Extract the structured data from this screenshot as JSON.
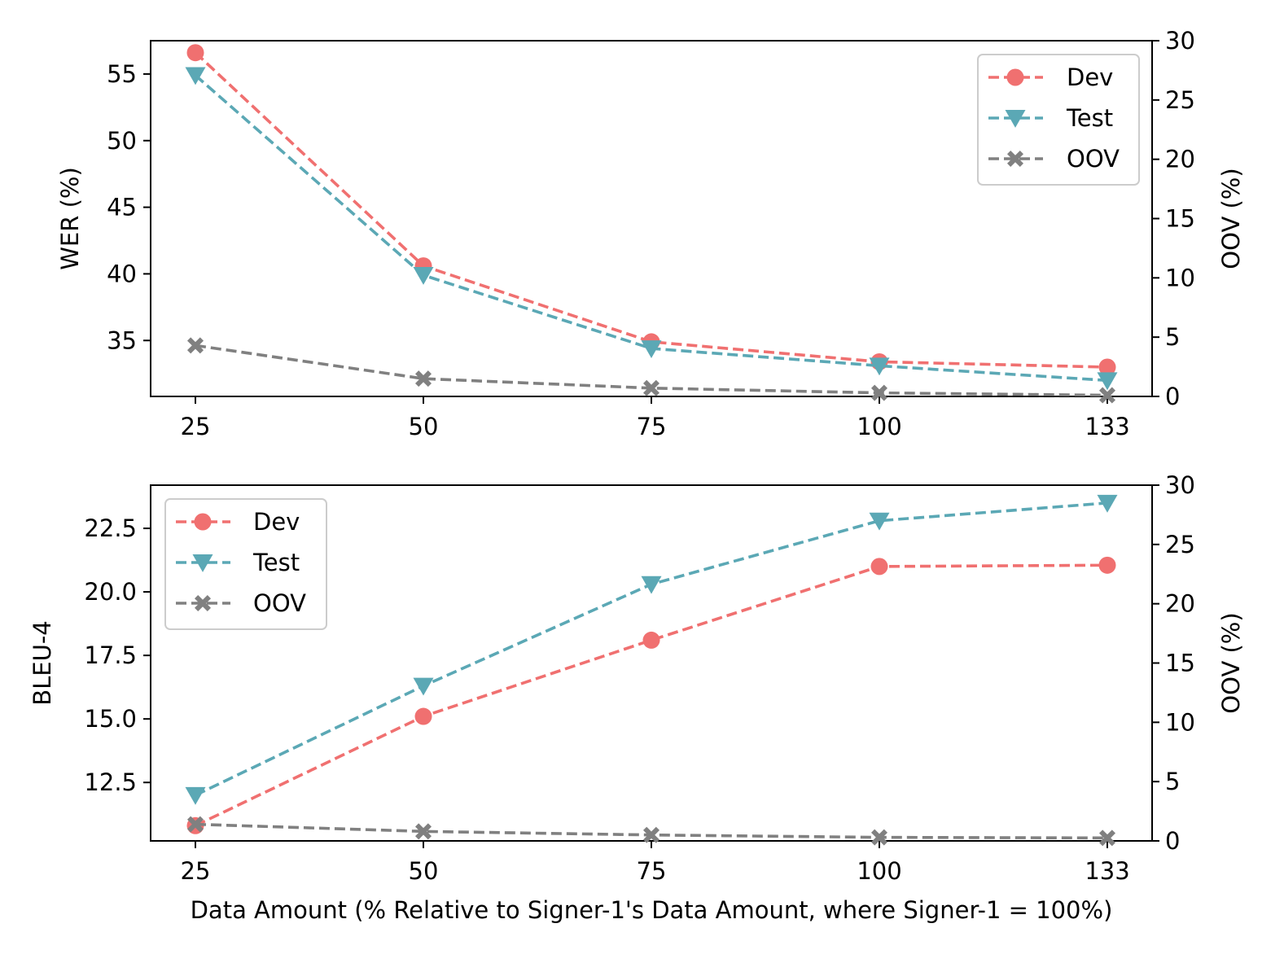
{
  "figure": {
    "xlabel": "Data Amount (% Relative to Signer-1's Data Amount, where Signer-1 = 100%)"
  },
  "colors": {
    "dev": "#f07070",
    "test": "#5ba8b5",
    "oov": "#808080"
  },
  "chart_data": [
    {
      "type": "line",
      "categories": [
        "25",
        "50",
        "75",
        "100",
        "133"
      ],
      "ylabel": "WER (%)",
      "y2label": "OOV (%)",
      "ylim": [
        30.8,
        57.5
      ],
      "y2lim": [
        0,
        30
      ],
      "yticks": [
        "35",
        "40",
        "45",
        "50",
        "55"
      ],
      "ytick_values": [
        35,
        40,
        45,
        50,
        55
      ],
      "y2ticks": [
        "0",
        "5",
        "10",
        "15",
        "20",
        "25",
        "30"
      ],
      "y2tick_values": [
        0,
        5,
        10,
        15,
        20,
        25,
        30
      ],
      "legend_position": "top-right",
      "grid": false,
      "series": [
        {
          "name": "Dev",
          "axis": "left",
          "marker": "circle",
          "color_key": "dev",
          "values": [
            56.6,
            40.6,
            34.9,
            33.4,
            33.0
          ]
        },
        {
          "name": "Test",
          "axis": "left",
          "marker": "triangle-down",
          "color_key": "test",
          "values": [
            54.9,
            39.9,
            34.4,
            33.1,
            32.0
          ]
        },
        {
          "name": "OOV",
          "axis": "right",
          "marker": "x",
          "color_key": "oov",
          "values": [
            4.3,
            1.5,
            0.7,
            0.3,
            0.1
          ]
        }
      ]
    },
    {
      "type": "line",
      "categories": [
        "25",
        "50",
        "75",
        "100",
        "133"
      ],
      "ylabel": "BLEU-4",
      "y2label": "OOV (%)",
      "ylim": [
        10.2,
        24.2
      ],
      "y2lim": [
        0,
        30
      ],
      "yticks": [
        "12.5",
        "15.0",
        "17.5",
        "20.0",
        "22.5"
      ],
      "ytick_values": [
        12.5,
        15.0,
        17.5,
        20.0,
        22.5
      ],
      "y2ticks": [
        "0",
        "5",
        "10",
        "15",
        "20",
        "25",
        "30"
      ],
      "y2tick_values": [
        0,
        5,
        10,
        15,
        20,
        25,
        30
      ],
      "legend_position": "top-left",
      "grid": false,
      "series": [
        {
          "name": "Dev",
          "axis": "left",
          "marker": "circle",
          "color_key": "dev",
          "values": [
            10.8,
            15.1,
            18.1,
            21.0,
            21.05
          ]
        },
        {
          "name": "Test",
          "axis": "left",
          "marker": "triangle-down",
          "color_key": "test",
          "values": [
            12.0,
            16.3,
            20.3,
            22.8,
            23.5
          ]
        },
        {
          "name": "OOV",
          "axis": "right",
          "marker": "x",
          "color_key": "oov",
          "values": [
            1.4,
            0.8,
            0.5,
            0.3,
            0.25
          ]
        }
      ]
    }
  ]
}
